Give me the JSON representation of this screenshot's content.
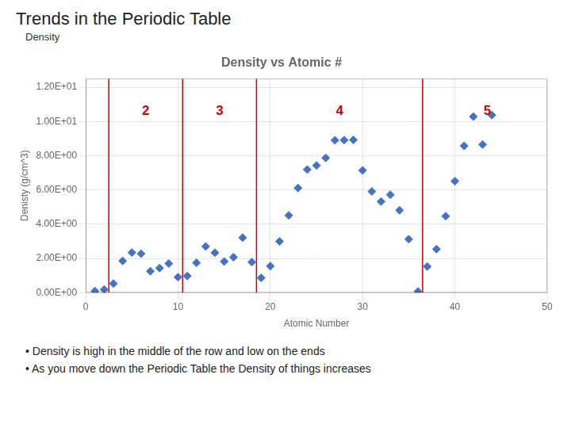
{
  "chart_data": {
    "type": "scatter",
    "title": "Trends in the Periodic Table",
    "subtitle": "Density",
    "chart_title": "Density vs Atomic #",
    "xlabel": "Atomic Number",
    "ylabel": "Denisty (g/cm^3)",
    "x": [
      1,
      2,
      3,
      4,
      5,
      6,
      7,
      8,
      9,
      10,
      11,
      12,
      13,
      14,
      15,
      16,
      17,
      18,
      19,
      20,
      21,
      22,
      23,
      24,
      25,
      26,
      27,
      28,
      29,
      30,
      31,
      32,
      33,
      34,
      35,
      36,
      37,
      38,
      39,
      40,
      41,
      42,
      43,
      44
    ],
    "values": [
      0.09,
      0.18,
      0.53,
      1.85,
      2.34,
      2.27,
      1.25,
      1.43,
      1.7,
      0.9,
      0.97,
      1.74,
      2.7,
      2.33,
      1.82,
      2.07,
      3.21,
      1.78,
      0.86,
      1.55,
      2.99,
      4.51,
      6.11,
      7.19,
      7.43,
      7.87,
      8.9,
      8.91,
      8.92,
      7.14,
      5.91,
      5.32,
      5.72,
      4.81,
      3.12,
      0.07,
      1.53,
      2.54,
      4.47,
      6.51,
      8.57,
      10.28,
      8.65,
      10.37
    ],
    "color": "#4472c4",
    "marker": "diamond",
    "vlines": {
      "x": [
        2.5,
        10.5,
        18.5,
        36.5
      ],
      "color": "#cc0000"
    },
    "annotations": [
      {
        "x": 6.5,
        "y": 11.0,
        "text": "2",
        "color": "#cc0000"
      },
      {
        "x": 14.5,
        "y": 11.0,
        "text": "3",
        "color": "#cc0000"
      },
      {
        "x": 27.5,
        "y": 11.0,
        "text": "4",
        "color": "#cc0000"
      },
      {
        "x": 43.5,
        "y": 11.0,
        "text": "5",
        "color": "#cc0000"
      }
    ],
    "xlim": [
      0,
      50
    ],
    "ylim": [
      0,
      12.5
    ],
    "xticks": [
      0,
      10,
      20,
      30,
      40,
      50
    ],
    "yticks": [
      {
        "value": 0,
        "label": "0.00E+00"
      },
      {
        "value": 2,
        "label": "2.00E+00"
      },
      {
        "value": 4,
        "label": "4.00E+00"
      },
      {
        "value": 6,
        "label": "6.00E+00"
      },
      {
        "value": 8,
        "label": "8.00E+00"
      },
      {
        "value": 10,
        "label": "1.00E+01"
      },
      {
        "value": 12,
        "label": "1.20E+01"
      }
    ],
    "grid": true,
    "bullets": [
      "•  Density is high in the middle of the row and low on the ends",
      "•  As you move down the Periodic Table the Density of things increases"
    ]
  }
}
